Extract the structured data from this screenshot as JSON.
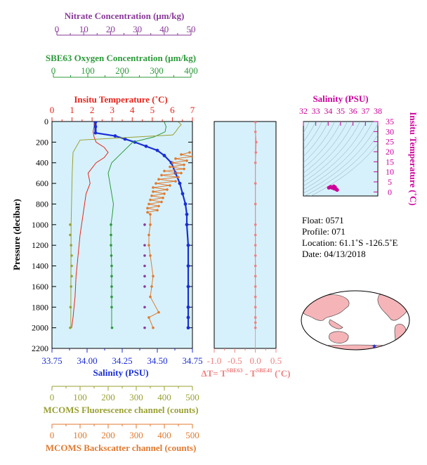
{
  "axes_titles": {
    "nitrate": "Nitrate Concentration (μm/kg)",
    "oxygen": "SBE63 Oxygen Concentration (μm/kg)",
    "temperature": "Insitu Temperature (˚C)",
    "salinity_bottom": "Salinity (PSU)",
    "fluorescence": "MCOMS Fluorescence channel (counts)",
    "backscatter": "MCOMS Backscatter channel (counts)",
    "pressure": "Pressure (decibar)",
    "dt_prefix": "ΔT= T",
    "dt_sub1": "SBE63",
    "dt_mid": " - T",
    "dt_sub2": "SBE41",
    "dt_unit": " (˚C)",
    "ts_salinity": "Salinity (PSU)",
    "ts_temperature": "Insitu Temperature (˚C)"
  },
  "ticks": {
    "nitrate": [
      "0",
      "10",
      "20",
      "30",
      "40",
      "50"
    ],
    "oxygen": [
      "0",
      "100",
      "200",
      "300",
      "400"
    ],
    "temperature": [
      "0",
      "1",
      "2",
      "3",
      "4",
      "5",
      "6",
      "7"
    ],
    "salinity": [
      "33.75",
      "34.00",
      "34.25",
      "34.50",
      "34.75"
    ],
    "fluorescence": [
      "0",
      "100",
      "200",
      "300",
      "400",
      "500"
    ],
    "backscatter": [
      "0",
      "100",
      "200",
      "300",
      "400",
      "500"
    ],
    "pressure": [
      "0",
      "200",
      "400",
      "600",
      "800",
      "1000",
      "1200",
      "1400",
      "1600",
      "1800",
      "2000",
      "2200"
    ],
    "dt": [
      "-1.0",
      "-0.5",
      "0.0",
      "0.5"
    ],
    "ts_salinity": [
      "32",
      "33",
      "34",
      "35",
      "36",
      "37",
      "38"
    ],
    "ts_temperature": [
      "0",
      "5",
      "10",
      "15",
      "20",
      "25",
      "30",
      "35"
    ]
  },
  "info": {
    "float": "Float:  0571",
    "profile": "Profile:  071",
    "location": "Location:  61.1˚S  -126.5˚E",
    "date": "Date:  04/13/2018"
  },
  "colors": {
    "plot_bg": "#d6f1fb",
    "temperature": "#e8241b",
    "salinity": "#1a2ed6",
    "oxygen": "#2c9a3a",
    "nitrate": "#8a3a9a",
    "fluorescence": "#9aa033",
    "backscatter": "#e07a30",
    "dt": "#f08080",
    "ts": "#cc0099",
    "land": "#f5b5b8",
    "ocean": "#ffffff"
  },
  "chart_data": {
    "type": "line",
    "y_axis": {
      "label": "Pressure (decibar)",
      "range": [
        0,
        2200
      ],
      "inverted": true
    },
    "ranges": {
      "temperature": [
        0,
        7
      ],
      "salinity": [
        33.75,
        34.75
      ],
      "oxygen": [
        0,
        400
      ],
      "nitrate": [
        0,
        50
      ],
      "fluorescence": [
        0,
        500
      ],
      "backscatter": [
        0,
        500
      ],
      "dt": [
        -1.0,
        0.5
      ]
    },
    "series": [
      {
        "name": "Insitu Temperature",
        "axis": "temperature",
        "style": "line",
        "x": [
          2.1,
          2.1,
          2.05,
          2.1,
          2.2,
          2.6,
          2.8,
          2.6,
          2.2,
          1.8,
          1.9,
          1.7,
          1.55,
          1.4,
          1.3,
          1.2,
          1.15,
          1.05,
          0.98
        ],
        "y": [
          5,
          50,
          100,
          150,
          200,
          250,
          300,
          350,
          400,
          500,
          600,
          700,
          900,
          1100,
          1300,
          1500,
          1700,
          1900,
          2000
        ]
      },
      {
        "name": "Salinity",
        "axis": "salinity",
        "style": "line-dots",
        "x": [
          34.06,
          34.06,
          34.06,
          34.2,
          34.27,
          34.34,
          34.42,
          34.5,
          34.55,
          34.6,
          34.63,
          34.66,
          34.68,
          34.7,
          34.71,
          34.71,
          34.72,
          34.72,
          34.72,
          34.72,
          34.72,
          34.72
        ],
        "y": [
          5,
          50,
          110,
          140,
          170,
          200,
          240,
          280,
          330,
          400,
          500,
          600,
          700,
          800,
          900,
          1000,
          1200,
          1400,
          1600,
          1800,
          1900,
          2000
        ]
      },
      {
        "name": "SBE63 Oxygen",
        "axis": "oxygen",
        "style": "line",
        "x": [
          320,
          325,
          322,
          290,
          230,
          200,
          170,
          160,
          165,
          170,
          175,
          172,
          168,
          168,
          170,
          170,
          170
        ],
        "y": [
          5,
          50,
          100,
          150,
          200,
          300,
          400,
          500,
          600,
          700,
          800,
          900,
          1000,
          1200,
          1400,
          1600,
          2000
        ]
      },
      {
        "name": "SBE63 Oxygen samples",
        "axis": "oxygen",
        "style": "dots",
        "x": [
          168,
          168,
          168,
          169,
          170,
          170,
          170,
          170,
          170,
          171
        ],
        "y": [
          1000,
          1100,
          1200,
          1300,
          1400,
          1500,
          1600,
          1700,
          1800,
          2000
        ]
      },
      {
        "name": "Nitrate",
        "axis": "nitrate",
        "style": "dots",
        "x": [
          33,
          33,
          33,
          33,
          33,
          33,
          33,
          33
        ],
        "y": [
          1000,
          1200,
          1300,
          1400,
          1500,
          1600,
          1800,
          2000
        ]
      },
      {
        "name": "MCOMS Fluorescence",
        "axis": "fluorescence",
        "style": "line",
        "x": [
          450,
          460,
          450,
          440,
          430,
          300,
          100,
          75,
          72,
          68,
          67
        ],
        "y": [
          5,
          30,
          60,
          100,
          130,
          150,
          180,
          300,
          500,
          1000,
          2000
        ]
      },
      {
        "name": "MCOMS Fluorescence samples",
        "axis": "fluorescence",
        "style": "dots",
        "x": [
          65,
          65,
          68,
          70,
          70,
          70,
          68,
          66,
          65
        ],
        "y": [
          1000,
          1100,
          1200,
          1300,
          1400,
          1500,
          1600,
          1800,
          2000
        ]
      },
      {
        "name": "MCOMS Backscatter",
        "axis": "backscatter",
        "style": "line-dots",
        "x": [
          490,
          460,
          500,
          440,
          480,
          430,
          470,
          420,
          470,
          400,
          460,
          390,
          450,
          380,
          440,
          370,
          420,
          360,
          410,
          360,
          400,
          355,
          395,
          350,
          390,
          345,
          380,
          340,
          375,
          340,
          350,
          350,
          345,
          345,
          350,
          360,
          355,
          350,
          380,
          345,
          360
        ],
        "y": [
          300,
          320,
          340,
          360,
          380,
          400,
          420,
          440,
          460,
          480,
          500,
          520,
          540,
          560,
          580,
          600,
          620,
          640,
          660,
          680,
          700,
          720,
          740,
          760,
          780,
          800,
          820,
          840,
          860,
          880,
          900,
          1000,
          1100,
          1200,
          1300,
          1500,
          1600,
          1700,
          1850,
          1900,
          2000
        ]
      },
      {
        "name": "ΔT",
        "axis": "dt",
        "style": "line-dots",
        "x": [
          0.0,
          0.0,
          0.02,
          0.01,
          0.0,
          0.0,
          0.0,
          0.0,
          0.0,
          0.0,
          0.0,
          0.0,
          0.0,
          0.0,
          0.0,
          0.0,
          0.0,
          0.0,
          0.0
        ],
        "y": [
          5,
          100,
          200,
          300,
          400,
          600,
          800,
          1000,
          1100,
          1200,
          1300,
          1400,
          1500,
          1600,
          1700,
          1800,
          1900,
          1950,
          2000
        ]
      }
    ],
    "ts_diagram": {
      "type": "scatter",
      "x_label": "Salinity (PSU)",
      "y_label": "Insitu Temperature (˚C)",
      "xlim": [
        32,
        38
      ],
      "ylim": [
        -2,
        35
      ],
      "points": [
        {
          "s": 34.1,
          "t": 2.2
        },
        {
          "s": 34.2,
          "t": 2.6
        },
        {
          "s": 34.3,
          "t": 2.1
        },
        {
          "s": 34.4,
          "t": 1.9
        },
        {
          "s": 34.5,
          "t": 1.6
        },
        {
          "s": 34.6,
          "t": 1.5
        },
        {
          "s": 34.65,
          "t": 1.3
        },
        {
          "s": 34.7,
          "t": 1.1
        },
        {
          "s": 34.72,
          "t": 1.0
        },
        {
          "s": 34.05,
          "t": 2.1
        },
        {
          "s": 34.55,
          "t": 2.4
        },
        {
          "s": 34.45,
          "t": 2.8
        }
      ]
    },
    "map": {
      "type": "map",
      "marker": {
        "lat": -61.1,
        "lon": -126.5
      }
    }
  }
}
